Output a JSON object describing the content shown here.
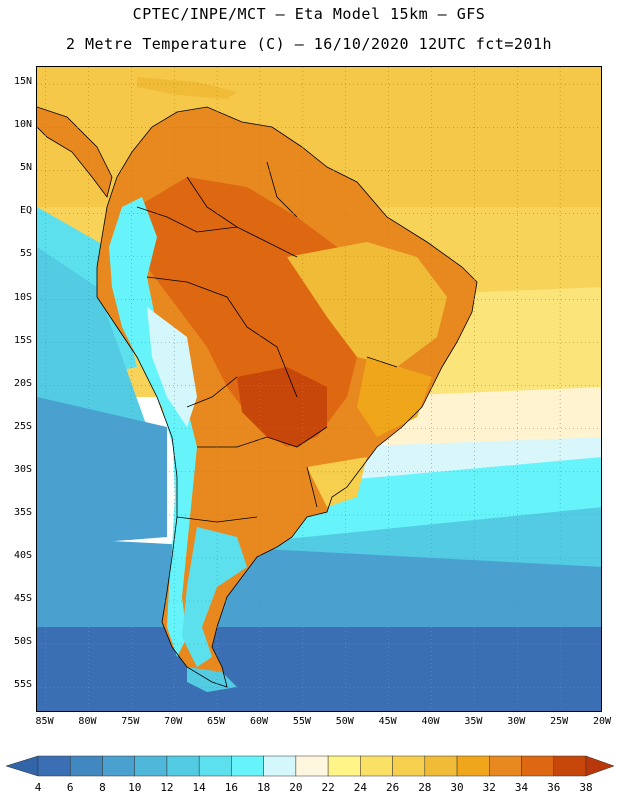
{
  "header": {
    "line1": "CPTEC/INPE/MCT –  Eta Model 15km – GFS",
    "line2": "2 Metre Temperature (C) – 16/10/2020 12UTC fct=201h"
  },
  "map": {
    "lon_range": [
      -86,
      -20
    ],
    "lat_range": [
      17,
      -58
    ],
    "lat_ticks": [
      {
        "value": 15,
        "label": "15N"
      },
      {
        "value": 10,
        "label": "10N"
      },
      {
        "value": 5,
        "label": "5N"
      },
      {
        "value": 0,
        "label": "EQ"
      },
      {
        "value": -5,
        "label": "5S"
      },
      {
        "value": -10,
        "label": "10S"
      },
      {
        "value": -15,
        "label": "15S"
      },
      {
        "value": -20,
        "label": "20S"
      },
      {
        "value": -25,
        "label": "25S"
      },
      {
        "value": -30,
        "label": "30S"
      },
      {
        "value": -35,
        "label": "35S"
      },
      {
        "value": -40,
        "label": "40S"
      },
      {
        "value": -45,
        "label": "45S"
      },
      {
        "value": -50,
        "label": "50S"
      },
      {
        "value": -55,
        "label": "55S"
      }
    ],
    "lon_ticks": [
      {
        "value": -85,
        "label": "85W"
      },
      {
        "value": -80,
        "label": "80W"
      },
      {
        "value": -75,
        "label": "75W"
      },
      {
        "value": -70,
        "label": "70W"
      },
      {
        "value": -65,
        "label": "65W"
      },
      {
        "value": -60,
        "label": "60W"
      },
      {
        "value": -55,
        "label": "55W"
      },
      {
        "value": -50,
        "label": "50W"
      },
      {
        "value": -45,
        "label": "45W"
      },
      {
        "value": -40,
        "label": "40W"
      },
      {
        "value": -35,
        "label": "35W"
      },
      {
        "value": -30,
        "label": "30W"
      },
      {
        "value": -25,
        "label": "25W"
      },
      {
        "value": -20,
        "label": "20W"
      }
    ],
    "gridlines": true
  },
  "colorbar": {
    "labels": [
      "4",
      "6",
      "8",
      "10",
      "12",
      "14",
      "16",
      "18",
      "20",
      "22",
      "24",
      "26",
      "28",
      "30",
      "32",
      "34",
      "36",
      "38"
    ],
    "colors": [
      "#3a6fb3",
      "#4288c0",
      "#4aa0cf",
      "#4fb7da",
      "#52cbe3",
      "#5de0ee",
      "#66f4fa",
      "#d3f7fb",
      "#fff6e0",
      "#fff488",
      "#fbe066",
      "#f5cf4d",
      "#f0bc38",
      "#efa61a",
      "#e8891f",
      "#de6811",
      "#c7460a"
    ],
    "left_arrow_color": "#3264a8",
    "right_arrow_color": "#b8380b"
  }
}
